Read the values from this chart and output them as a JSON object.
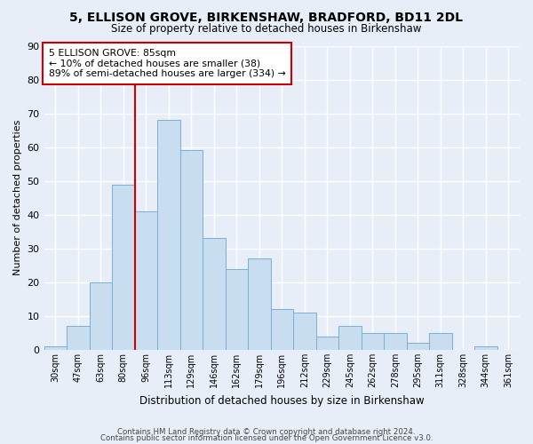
{
  "title": "5, ELLISON GROVE, BIRKENSHAW, BRADFORD, BD11 2DL",
  "subtitle": "Size of property relative to detached houses in Birkenshaw",
  "xlabel": "Distribution of detached houses by size in Birkenshaw",
  "ylabel": "Number of detached properties",
  "bar_color": "#c9ddf0",
  "bar_edge_color": "#7bafd4",
  "bin_labels": [
    "30sqm",
    "47sqm",
    "63sqm",
    "80sqm",
    "96sqm",
    "113sqm",
    "129sqm",
    "146sqm",
    "162sqm",
    "179sqm",
    "196sqm",
    "212sqm",
    "229sqm",
    "245sqm",
    "262sqm",
    "278sqm",
    "295sqm",
    "311sqm",
    "328sqm",
    "344sqm",
    "361sqm"
  ],
  "bar_heights": [
    1,
    7,
    20,
    49,
    41,
    68,
    59,
    33,
    24,
    27,
    12,
    11,
    4,
    7,
    5,
    5,
    2,
    5,
    0,
    1,
    0
  ],
  "ylim": [
    0,
    90
  ],
  "yticks": [
    0,
    10,
    20,
    30,
    40,
    50,
    60,
    70,
    80,
    90
  ],
  "vline_x": 3.5,
  "annotation_title": "5 ELLISON GROVE: 85sqm",
  "annotation_line1": "← 10% of detached houses are smaller (38)",
  "annotation_line2": "89% of semi-detached houses are larger (334) →",
  "annotation_box_color": "#ffffff",
  "annotation_box_edge": "#cc0000",
  "vline_color": "#cc0000",
  "footer1": "Contains HM Land Registry data © Crown copyright and database right 2024.",
  "footer2": "Contains public sector information licensed under the Open Government Licence v3.0.",
  "background_color": "#e8eef8",
  "grid_color": "#ffffff"
}
